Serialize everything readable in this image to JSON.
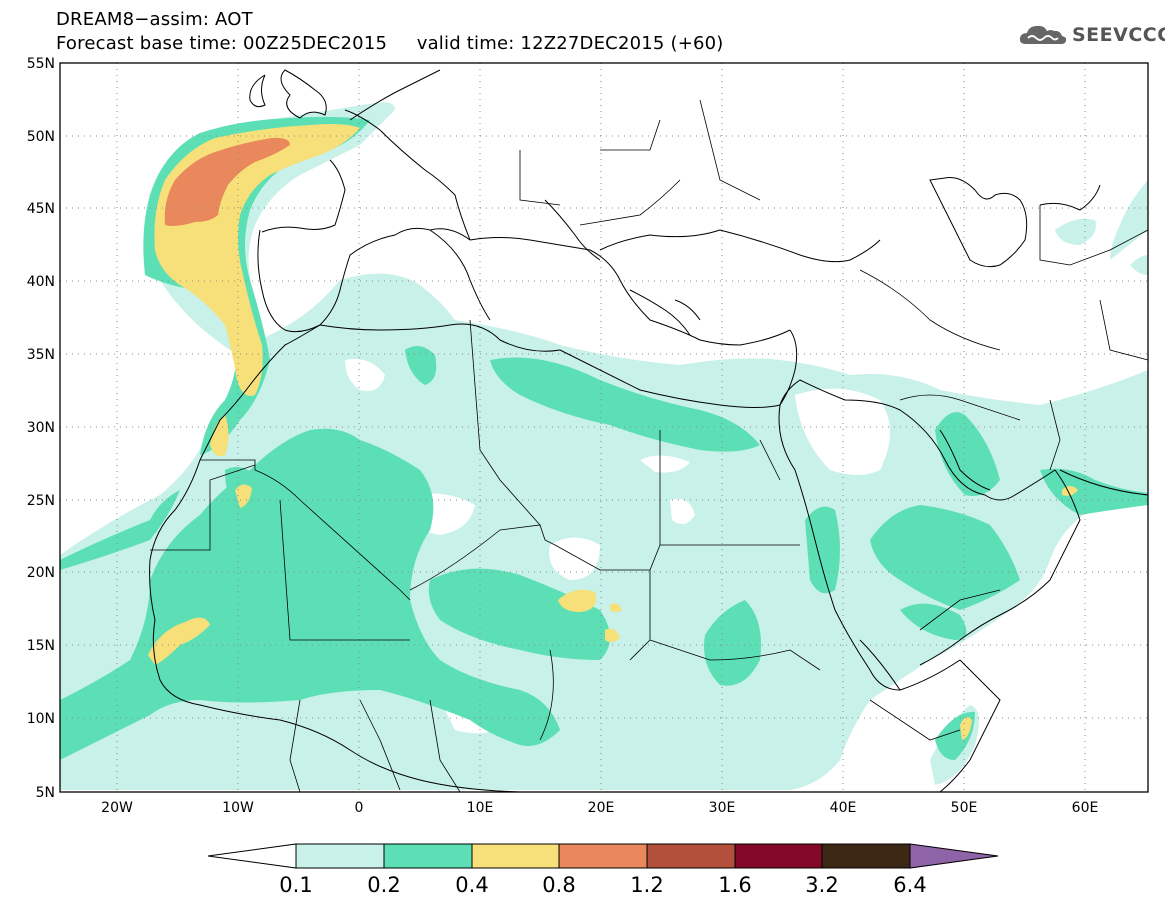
{
  "title": {
    "line1": "DREAM8−assim: AOT",
    "line2": "Forecast base time: 00Z25DEC2015     valid time: 12Z27DEC2015 (+60)"
  },
  "logo": {
    "text": "SEEVCCC",
    "icon": "cloud-icon"
  },
  "map": {
    "lat_range": [
      5,
      55
    ],
    "lon_range": [
      -25,
      65
    ],
    "lat_ticks": [
      "5N",
      "10N",
      "15N",
      "20N",
      "25N",
      "30N",
      "35N",
      "40N",
      "45N",
      "50N",
      "55N"
    ],
    "lon_ticks": [
      "20W",
      "10W",
      "0",
      "10E",
      "20E",
      "30E",
      "40E",
      "50E",
      "60E"
    ],
    "grid": "dotted",
    "field": "Aerosol optical thickness (AOT)"
  },
  "colorbar": {
    "levels": [
      "0.1",
      "0.2",
      "0.4",
      "0.8",
      "1.2",
      "1.6",
      "3.2",
      "6.4"
    ],
    "colors": [
      "#ffffff",
      "#c8f1ea",
      "#5ddfb5",
      "#f7e07a",
      "#e8885c",
      "#b2503c",
      "#820a28",
      "#3d2816",
      "#8e63a8"
    ]
  }
}
